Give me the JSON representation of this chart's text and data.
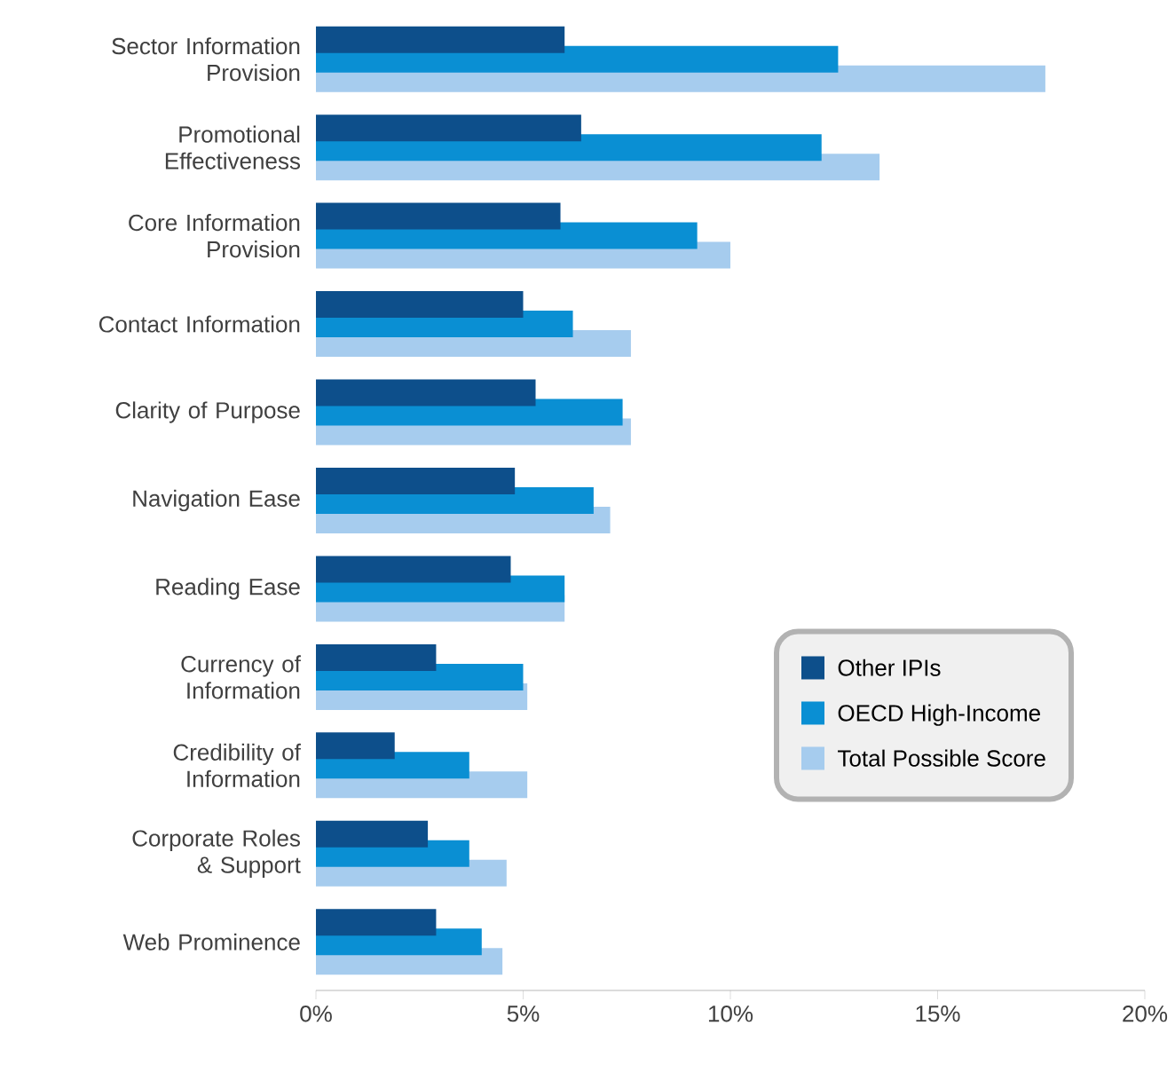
{
  "chart_data": {
    "type": "bar",
    "orientation": "horizontal",
    "categories": [
      "Sector Information Provision",
      "Promotional Effectiveness",
      "Core Information Provision",
      "Contact Information",
      "Clarity of Purpose",
      "Navigation Ease",
      "Reading Ease",
      "Currency of Information",
      "Credibility of Information",
      "Corporate Roles & Support",
      "Web Prominence"
    ],
    "series": [
      {
        "name": "Other IPIs",
        "color": "#0d4f8b",
        "values": [
          6.0,
          6.4,
          5.9,
          5.0,
          5.3,
          4.8,
          4.7,
          2.9,
          1.9,
          2.7,
          2.9
        ]
      },
      {
        "name": "OECD High-Income",
        "color": "#0a8fd3",
        "values": [
          12.6,
          12.2,
          9.2,
          6.2,
          7.4,
          6.7,
          6.0,
          5.0,
          3.7,
          3.7,
          4.0
        ]
      },
      {
        "name": "Total Possible Score",
        "color": "#a6ccee",
        "values": [
          17.6,
          13.6,
          10.0,
          7.6,
          7.6,
          7.1,
          6.0,
          5.1,
          5.1,
          4.6,
          4.5
        ]
      }
    ],
    "xlim": [
      0,
      20
    ],
    "xticks": [
      {
        "value": 0,
        "label": "0%"
      },
      {
        "value": 5,
        "label": "5%"
      },
      {
        "value": 10,
        "label": "10%"
      },
      {
        "value": 15,
        "label": "15%"
      },
      {
        "value": 20,
        "label": "20%"
      }
    ],
    "legend": "right"
  }
}
